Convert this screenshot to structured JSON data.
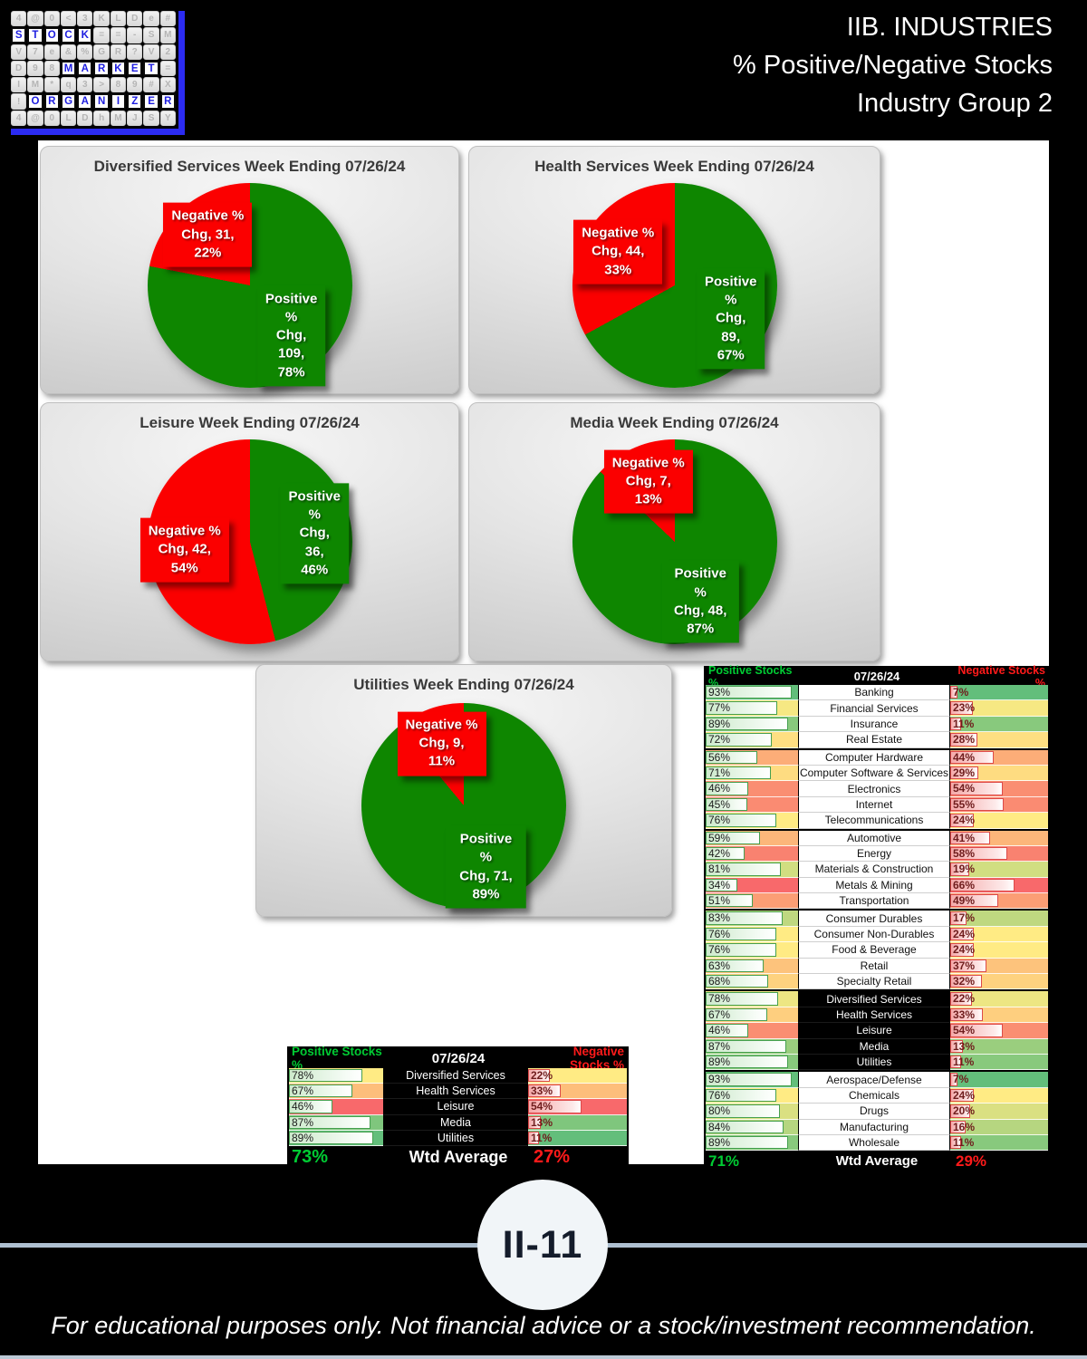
{
  "header": {
    "line1": "IIB. INDUSTRIES",
    "line2": "% Positive/Negative Stocks",
    "line3": "Industry Group 2"
  },
  "logo": {
    "grid": [
      "4@0<3KLDe#",
      "STOCK==-SM",
      "V7e&%GR?V2",
      "D98MARKET=",
      "IM*q3>89#X",
      "!ORGANIZER",
      "4@0LDhMJSY"
    ],
    "words": [
      {
        "row": 1,
        "start": 0,
        "len": 5
      },
      {
        "row": 3,
        "start": 3,
        "len": 6
      },
      {
        "row": 5,
        "start": 1,
        "len": 9
      }
    ]
  },
  "colors": {
    "pie_green": "#0e8600",
    "pie_red": "#fb0000",
    "header_green": "#00cc33",
    "header_red": "#ff1a1a",
    "logo_blue": "#2b2bf2",
    "scale_red": "#f8696b",
    "scale_yellow": "#ffeb84",
    "scale_green": "#63be7b"
  },
  "chart_data": [
    {
      "type": "pie",
      "title": "Diversified Services Week Ending 07/26/24",
      "series": [
        {
          "name": "Positive % Chg",
          "value": 109,
          "pct": 78
        },
        {
          "name": "Negative % Chg",
          "value": 31,
          "pct": 22
        }
      ]
    },
    {
      "type": "pie",
      "title": "Health Services Week Ending 07/26/24",
      "series": [
        {
          "name": "Positive % Chg",
          "value": 89,
          "pct": 67
        },
        {
          "name": "Negative % Chg",
          "value": 44,
          "pct": 33
        }
      ]
    },
    {
      "type": "pie",
      "title": "Leisure Week Ending 07/26/24",
      "series": [
        {
          "name": "Positive % Chg",
          "value": 36,
          "pct": 46
        },
        {
          "name": "Negative % Chg",
          "value": 42,
          "pct": 54
        }
      ]
    },
    {
      "type": "pie",
      "title": "Media Week Ending 07/26/24",
      "series": [
        {
          "name": "Positive % Chg",
          "value": 48,
          "pct": 87
        },
        {
          "name": "Negative % Chg",
          "value": 7,
          "pct": 13
        }
      ]
    },
    {
      "type": "pie",
      "title": "Utilities Week Ending 07/26/24",
      "series": [
        {
          "name": "Positive % Chg",
          "value": 71,
          "pct": 89
        },
        {
          "name": "Negative % Chg",
          "value": 9,
          "pct": 11
        }
      ]
    },
    {
      "type": "table",
      "name": "group2-summary",
      "columns": [
        "Positive Stocks %",
        "07/26/24",
        "Negative Stocks %"
      ],
      "rows": [
        {
          "industry": "Diversified Services",
          "positive": 78,
          "negative": 22
        },
        {
          "industry": "Health Services",
          "positive": 67,
          "negative": 33
        },
        {
          "industry": "Leisure",
          "positive": 46,
          "negative": 54
        },
        {
          "industry": "Media",
          "positive": 87,
          "negative": 13
        },
        {
          "industry": "Utilities",
          "positive": 89,
          "negative": 11
        }
      ],
      "footer": {
        "label": "Wtd Average",
        "positive": 73,
        "negative": 27
      },
      "highlight_rows": [],
      "section_breaks_after": []
    },
    {
      "type": "table",
      "name": "all-industries",
      "columns": [
        "Positive Stocks %",
        "07/26/24",
        "Negative Stocks %"
      ],
      "rows": [
        {
          "industry": "Banking",
          "positive": 93,
          "negative": 7
        },
        {
          "industry": "Financial Services",
          "positive": 77,
          "negative": 23
        },
        {
          "industry": "Insurance",
          "positive": 89,
          "negative": 11
        },
        {
          "industry": "Real Estate",
          "positive": 72,
          "negative": 28
        },
        {
          "industry": "Computer Hardware",
          "positive": 56,
          "negative": 44
        },
        {
          "industry": "Computer Software & Services",
          "positive": 71,
          "negative": 29
        },
        {
          "industry": "Electronics",
          "positive": 46,
          "negative": 54
        },
        {
          "industry": "Internet",
          "positive": 45,
          "negative": 55
        },
        {
          "industry": "Telecommunications",
          "positive": 76,
          "negative": 24
        },
        {
          "industry": "Automotive",
          "positive": 59,
          "negative": 41
        },
        {
          "industry": "Energy",
          "positive": 42,
          "negative": 58
        },
        {
          "industry": "Materials & Construction",
          "positive": 81,
          "negative": 19
        },
        {
          "industry": "Metals & Mining",
          "positive": 34,
          "negative": 66
        },
        {
          "industry": "Transportation",
          "positive": 51,
          "negative": 49
        },
        {
          "industry": "Consumer Durables",
          "positive": 83,
          "negative": 17
        },
        {
          "industry": "Consumer Non-Durables",
          "positive": 76,
          "negative": 24
        },
        {
          "industry": "Food & Beverage",
          "positive": 76,
          "negative": 24
        },
        {
          "industry": "Retail",
          "positive": 63,
          "negative": 37
        },
        {
          "industry": "Specialty Retail",
          "positive": 68,
          "negative": 32
        },
        {
          "industry": "Diversified Services",
          "positive": 78,
          "negative": 22
        },
        {
          "industry": "Health Services",
          "positive": 67,
          "negative": 33
        },
        {
          "industry": "Leisure",
          "positive": 46,
          "negative": 54
        },
        {
          "industry": "Media",
          "positive": 87,
          "negative": 13
        },
        {
          "industry": "Utilities",
          "positive": 89,
          "negative": 11
        },
        {
          "industry": "Aerospace/Defense",
          "positive": 93,
          "negative": 7
        },
        {
          "industry": "Chemicals",
          "positive": 76,
          "negative": 24
        },
        {
          "industry": "Drugs",
          "positive": 80,
          "negative": 20
        },
        {
          "industry": "Manufacturing",
          "positive": 84,
          "negative": 16
        },
        {
          "industry": "Wholesale",
          "positive": 89,
          "negative": 11
        }
      ],
      "footer": {
        "label": "Wtd Average",
        "positive": 71,
        "negative": 29
      },
      "highlight_rows": [
        "Diversified Services",
        "Health Services",
        "Leisure",
        "Media",
        "Utilities"
      ],
      "section_breaks_after": [
        "Real Estate",
        "Telecommunications",
        "Transportation",
        "Specialty Retail",
        "Utilities"
      ]
    }
  ],
  "badge": {
    "label": "II-11"
  },
  "footer_note": "For educational purposes only. Not financial advice or a stock/investment recommendation."
}
